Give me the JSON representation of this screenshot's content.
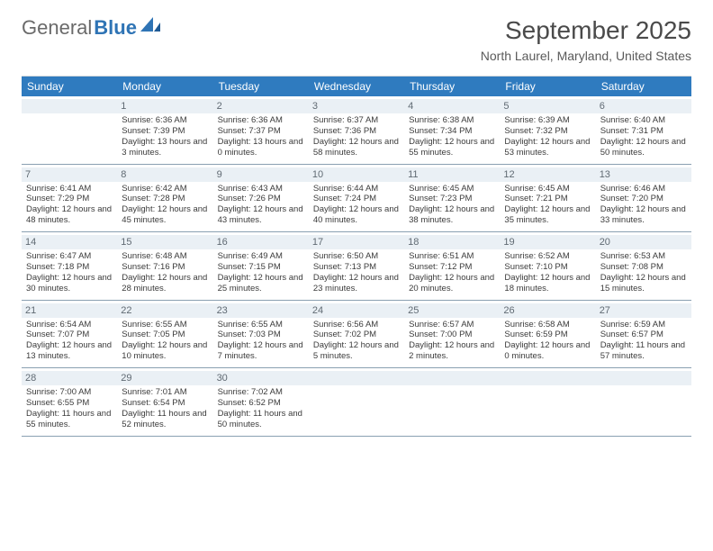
{
  "brand": {
    "part1": "General",
    "part2": "Blue"
  },
  "title": "September 2025",
  "location": "North Laurel, Maryland, United States",
  "colors": {
    "header_bg": "#2f7bbf",
    "daynum_bg": "#eaf0f5",
    "rule": "#8aa0b2",
    "text": "#3b3b3b",
    "brand_gray": "#6a6a6a",
    "brand_blue": "#2f74b5"
  },
  "daysOfWeek": [
    "Sunday",
    "Monday",
    "Tuesday",
    "Wednesday",
    "Thursday",
    "Friday",
    "Saturday"
  ],
  "weeks": [
    [
      {
        "n": "",
        "sunrise": "",
        "sunset": "",
        "daylight": ""
      },
      {
        "n": "1",
        "sunrise": "Sunrise: 6:36 AM",
        "sunset": "Sunset: 7:39 PM",
        "daylight": "Daylight: 13 hours and 3 minutes."
      },
      {
        "n": "2",
        "sunrise": "Sunrise: 6:36 AM",
        "sunset": "Sunset: 7:37 PM",
        "daylight": "Daylight: 13 hours and 0 minutes."
      },
      {
        "n": "3",
        "sunrise": "Sunrise: 6:37 AM",
        "sunset": "Sunset: 7:36 PM",
        "daylight": "Daylight: 12 hours and 58 minutes."
      },
      {
        "n": "4",
        "sunrise": "Sunrise: 6:38 AM",
        "sunset": "Sunset: 7:34 PM",
        "daylight": "Daylight: 12 hours and 55 minutes."
      },
      {
        "n": "5",
        "sunrise": "Sunrise: 6:39 AM",
        "sunset": "Sunset: 7:32 PM",
        "daylight": "Daylight: 12 hours and 53 minutes."
      },
      {
        "n": "6",
        "sunrise": "Sunrise: 6:40 AM",
        "sunset": "Sunset: 7:31 PM",
        "daylight": "Daylight: 12 hours and 50 minutes."
      }
    ],
    [
      {
        "n": "7",
        "sunrise": "Sunrise: 6:41 AM",
        "sunset": "Sunset: 7:29 PM",
        "daylight": "Daylight: 12 hours and 48 minutes."
      },
      {
        "n": "8",
        "sunrise": "Sunrise: 6:42 AM",
        "sunset": "Sunset: 7:28 PM",
        "daylight": "Daylight: 12 hours and 45 minutes."
      },
      {
        "n": "9",
        "sunrise": "Sunrise: 6:43 AM",
        "sunset": "Sunset: 7:26 PM",
        "daylight": "Daylight: 12 hours and 43 minutes."
      },
      {
        "n": "10",
        "sunrise": "Sunrise: 6:44 AM",
        "sunset": "Sunset: 7:24 PM",
        "daylight": "Daylight: 12 hours and 40 minutes."
      },
      {
        "n": "11",
        "sunrise": "Sunrise: 6:45 AM",
        "sunset": "Sunset: 7:23 PM",
        "daylight": "Daylight: 12 hours and 38 minutes."
      },
      {
        "n": "12",
        "sunrise": "Sunrise: 6:45 AM",
        "sunset": "Sunset: 7:21 PM",
        "daylight": "Daylight: 12 hours and 35 minutes."
      },
      {
        "n": "13",
        "sunrise": "Sunrise: 6:46 AM",
        "sunset": "Sunset: 7:20 PM",
        "daylight": "Daylight: 12 hours and 33 minutes."
      }
    ],
    [
      {
        "n": "14",
        "sunrise": "Sunrise: 6:47 AM",
        "sunset": "Sunset: 7:18 PM",
        "daylight": "Daylight: 12 hours and 30 minutes."
      },
      {
        "n": "15",
        "sunrise": "Sunrise: 6:48 AM",
        "sunset": "Sunset: 7:16 PM",
        "daylight": "Daylight: 12 hours and 28 minutes."
      },
      {
        "n": "16",
        "sunrise": "Sunrise: 6:49 AM",
        "sunset": "Sunset: 7:15 PM",
        "daylight": "Daylight: 12 hours and 25 minutes."
      },
      {
        "n": "17",
        "sunrise": "Sunrise: 6:50 AM",
        "sunset": "Sunset: 7:13 PM",
        "daylight": "Daylight: 12 hours and 23 minutes."
      },
      {
        "n": "18",
        "sunrise": "Sunrise: 6:51 AM",
        "sunset": "Sunset: 7:12 PM",
        "daylight": "Daylight: 12 hours and 20 minutes."
      },
      {
        "n": "19",
        "sunrise": "Sunrise: 6:52 AM",
        "sunset": "Sunset: 7:10 PM",
        "daylight": "Daylight: 12 hours and 18 minutes."
      },
      {
        "n": "20",
        "sunrise": "Sunrise: 6:53 AM",
        "sunset": "Sunset: 7:08 PM",
        "daylight": "Daylight: 12 hours and 15 minutes."
      }
    ],
    [
      {
        "n": "21",
        "sunrise": "Sunrise: 6:54 AM",
        "sunset": "Sunset: 7:07 PM",
        "daylight": "Daylight: 12 hours and 13 minutes."
      },
      {
        "n": "22",
        "sunrise": "Sunrise: 6:55 AM",
        "sunset": "Sunset: 7:05 PM",
        "daylight": "Daylight: 12 hours and 10 minutes."
      },
      {
        "n": "23",
        "sunrise": "Sunrise: 6:55 AM",
        "sunset": "Sunset: 7:03 PM",
        "daylight": "Daylight: 12 hours and 7 minutes."
      },
      {
        "n": "24",
        "sunrise": "Sunrise: 6:56 AM",
        "sunset": "Sunset: 7:02 PM",
        "daylight": "Daylight: 12 hours and 5 minutes."
      },
      {
        "n": "25",
        "sunrise": "Sunrise: 6:57 AM",
        "sunset": "Sunset: 7:00 PM",
        "daylight": "Daylight: 12 hours and 2 minutes."
      },
      {
        "n": "26",
        "sunrise": "Sunrise: 6:58 AM",
        "sunset": "Sunset: 6:59 PM",
        "daylight": "Daylight: 12 hours and 0 minutes."
      },
      {
        "n": "27",
        "sunrise": "Sunrise: 6:59 AM",
        "sunset": "Sunset: 6:57 PM",
        "daylight": "Daylight: 11 hours and 57 minutes."
      }
    ],
    [
      {
        "n": "28",
        "sunrise": "Sunrise: 7:00 AM",
        "sunset": "Sunset: 6:55 PM",
        "daylight": "Daylight: 11 hours and 55 minutes."
      },
      {
        "n": "29",
        "sunrise": "Sunrise: 7:01 AM",
        "sunset": "Sunset: 6:54 PM",
        "daylight": "Daylight: 11 hours and 52 minutes."
      },
      {
        "n": "30",
        "sunrise": "Sunrise: 7:02 AM",
        "sunset": "Sunset: 6:52 PM",
        "daylight": "Daylight: 11 hours and 50 minutes."
      },
      {
        "n": "",
        "sunrise": "",
        "sunset": "",
        "daylight": ""
      },
      {
        "n": "",
        "sunrise": "",
        "sunset": "",
        "daylight": ""
      },
      {
        "n": "",
        "sunrise": "",
        "sunset": "",
        "daylight": ""
      },
      {
        "n": "",
        "sunrise": "",
        "sunset": "",
        "daylight": ""
      }
    ]
  ]
}
